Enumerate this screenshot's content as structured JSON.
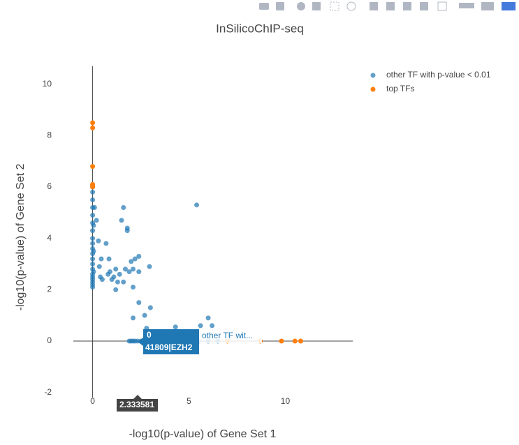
{
  "chart_data": {
    "type": "scatter",
    "title": "InSilicoChIP-seq",
    "x_label": "-log10(p-value) of Gene Set 1",
    "y_label": "-log10(p-value) of Gene Set 2",
    "xlim": [
      -1,
      13.5
    ],
    "ylim": [
      -2.2,
      10.7
    ],
    "xticks": [
      0,
      5,
      10
    ],
    "yticks": [
      -2,
      0,
      2,
      4,
      6,
      8,
      10
    ],
    "zeroline": true,
    "grid": false,
    "legend": "top-right",
    "series": [
      {
        "name": "other TF with p-value < 0.01",
        "color": "#1f77b4",
        "x": [
          0,
          0,
          0,
          0,
          0,
          0,
          0,
          0,
          0,
          0,
          0,
          0,
          0,
          0,
          0,
          0,
          0,
          0,
          0,
          0,
          0.05,
          0.05,
          0.05,
          0.3,
          0.2,
          0.1,
          0.35,
          0.4,
          0.45,
          0.5,
          0.7,
          0.8,
          0.85,
          0.9,
          1.0,
          1.1,
          1.2,
          1.3,
          1.4,
          1.5,
          1.6,
          1.6,
          1.7,
          1.8,
          1.8,
          1.9,
          2.0,
          2.1,
          2.2,
          2.4,
          2.4,
          2.4,
          2.7,
          2.1,
          3.0,
          2.95,
          2.1,
          1.2,
          5.4,
          6.0,
          6.2,
          2.8,
          4.3,
          5.6,
          1.9,
          2.0,
          2.1,
          2.2,
          2.33,
          2.5,
          2.6,
          2.7,
          3.0,
          3.5,
          4.0,
          4.5,
          5.0,
          5.5,
          6.0,
          6.5
        ],
        "y": [
          2.1,
          2.2,
          2.3,
          2.4,
          2.5,
          2.6,
          2.8,
          3.0,
          3.2,
          3.4,
          3.6,
          3.8,
          4.0,
          4.3,
          4.6,
          4.9,
          5.2,
          5.5,
          5.8,
          6.0,
          2.7,
          3.5,
          4.5,
          3.9,
          4.7,
          5.2,
          2.9,
          2.5,
          3.2,
          2.4,
          3.8,
          2.6,
          3.2,
          2.7,
          2.4,
          2.5,
          2.8,
          2.3,
          2.6,
          4.7,
          5.2,
          2.3,
          2.8,
          4.3,
          4.4,
          2.7,
          3.1,
          2.8,
          3.2,
          3.3,
          2.7,
          1.5,
          1.0,
          0.9,
          1.3,
          2.9,
          2.1,
          2.0,
          5.3,
          0.9,
          0.6,
          0.5,
          0.55,
          0.6,
          0,
          0,
          0,
          0,
          0,
          0,
          0,
          0,
          0,
          0,
          0,
          0,
          0,
          0,
          0,
          0
        ]
      },
      {
        "name": "top TFs",
        "color": "#ff7f0e",
        "x": [
          0,
          0,
          0,
          0,
          0,
          0,
          7.0,
          8.7,
          9.8,
          10.5,
          10.8
        ],
        "y": [
          8.5,
          8.3,
          6.8,
          6.1,
          6.05,
          6.0,
          0,
          0,
          0,
          0,
          0
        ]
      }
    ],
    "hover": {
      "lines": [
        "0",
        "41809|EZH2"
      ],
      "series_label": "other TF wit...",
      "x_label": "2.333581"
    }
  }
}
